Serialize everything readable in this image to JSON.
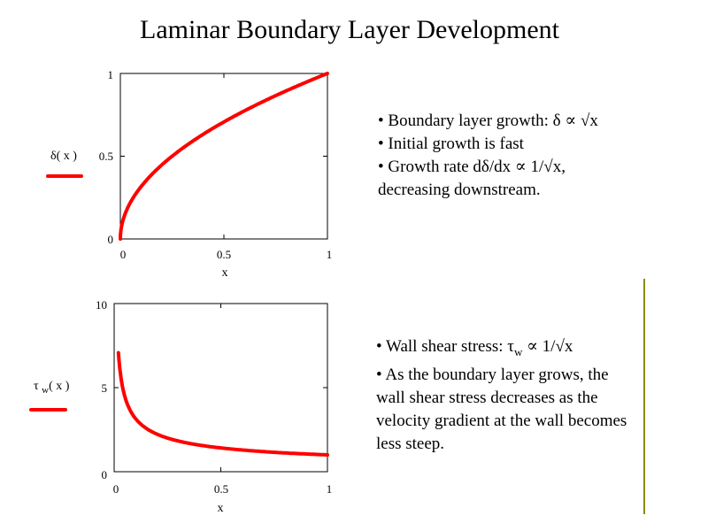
{
  "title": "Laminar Boundary Layer Development",
  "colors": {
    "curve": "#ff0000",
    "divider": "#8b8b00"
  },
  "chart_data": [
    {
      "type": "line",
      "xlabel": "x",
      "ylabel_main": "δ",
      "ylabel_arg": "( x )",
      "xlim": [
        0,
        1
      ],
      "ylim": [
        0,
        1
      ],
      "xticks": [
        "0",
        "0.5",
        "1"
      ],
      "yticks": [
        "0",
        "0.5",
        "1"
      ],
      "function": "sqrt",
      "x": [
        0,
        0.01,
        0.05,
        0.1,
        0.2,
        0.3,
        0.4,
        0.5,
        0.6,
        0.7,
        0.8,
        0.9,
        1
      ],
      "y": [
        0,
        0.1,
        0.22,
        0.32,
        0.45,
        0.55,
        0.63,
        0.71,
        0.77,
        0.84,
        0.89,
        0.95,
        1
      ],
      "grid": false
    },
    {
      "type": "line",
      "xlabel": "x",
      "ylabel_main": "τ",
      "ylabel_sub": "w",
      "ylabel_arg": "( x )",
      "xlim": [
        0,
        1
      ],
      "ylim": [
        0,
        10
      ],
      "xticks": [
        "0",
        "0.5",
        "1"
      ],
      "yticks": [
        "0",
        "5",
        "10"
      ],
      "function": "inv_sqrt",
      "x": [
        0.02,
        0.05,
        0.1,
        0.2,
        0.3,
        0.4,
        0.5,
        0.6,
        0.7,
        0.8,
        0.9,
        1
      ],
      "y": [
        7.1,
        4.5,
        3.2,
        2.2,
        1.8,
        1.6,
        1.4,
        1.3,
        1.2,
        1.1,
        1.05,
        1
      ],
      "grid": false
    }
  ],
  "notes_top": [
    "• Boundary layer growth: δ ∝ √x",
    "• Initial growth is fast",
    "• Growth rate dδ/dx ∝ 1/√x,",
    "decreasing downstream."
  ],
  "notes_bottom": {
    "line1_prefix": "• Wall shear stress: τ",
    "line1_sub": "w",
    "line1_suffix": " ∝ 1/√x",
    "line2": "• As the boundary layer grows, the",
    "line3": "wall shear stress decreases as the",
    "line4": "velocity gradient at the wall becomes",
    "line5": "less steep."
  }
}
